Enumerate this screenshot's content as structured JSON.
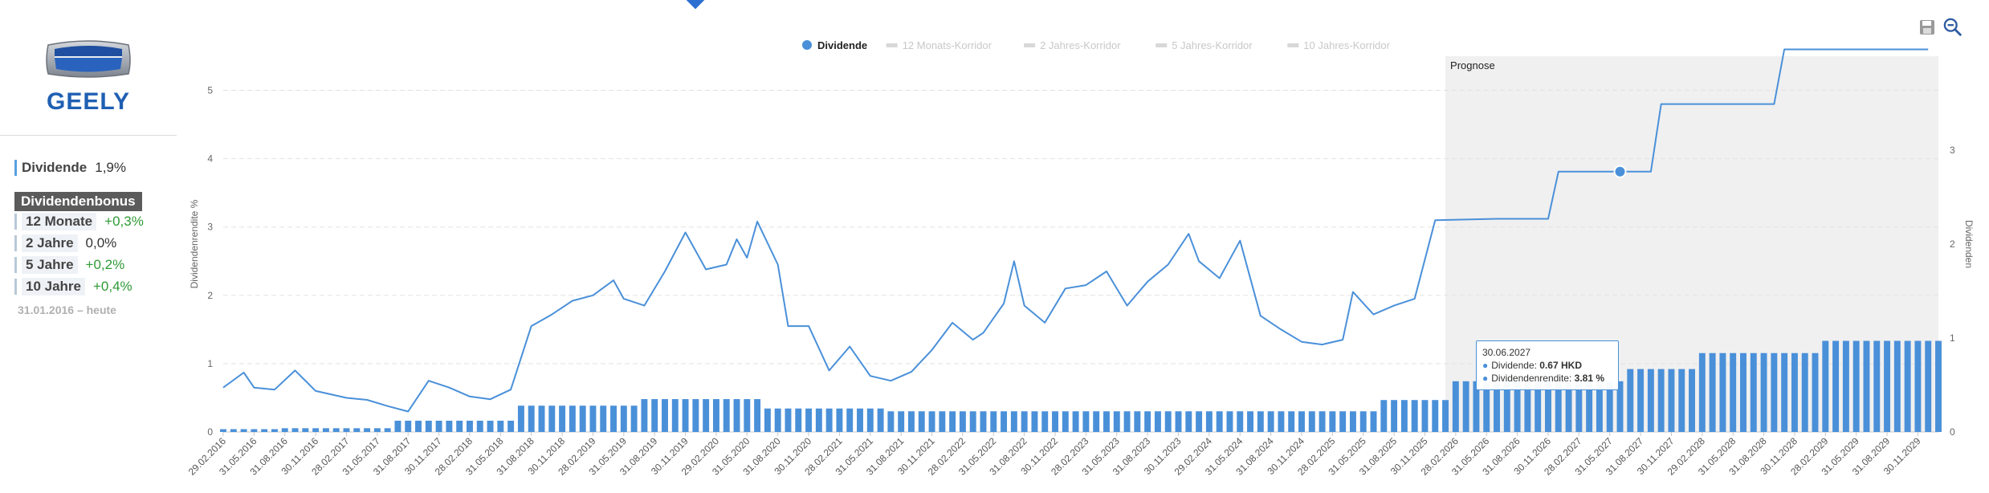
{
  "company": {
    "logo_text": "GEELY"
  },
  "metrics": {
    "dividend": {
      "label": "Dividende",
      "value": "1,9%"
    },
    "bonus_header": "Dividendenbonus",
    "bonus": [
      {
        "label": "12 Monate",
        "value": "+0,3%"
      },
      {
        "label": "2 Jahre",
        "value": "0,0%"
      },
      {
        "label": "5 Jahre",
        "value": "+0,2%"
      },
      {
        "label": "10 Jahre",
        "value": "+0,4%"
      }
    ],
    "range": "31.01.2016 – heute"
  },
  "tooltip": {
    "date": "30.06.2027",
    "dividend_label": "Dividende:",
    "dividend_value": "0.67 HKD",
    "yield_label": "Dividendenrendite:",
    "yield_value": "3.81 %"
  },
  "colors": {
    "line": "#4a90d9",
    "bars": "#4a90d9",
    "forecast_bg": "#f0f0f0"
  },
  "toolbar": {
    "icons": [
      "save-icon",
      "zoom-out-icon"
    ]
  },
  "chart_data": {
    "type": "bar+line",
    "legend": [
      {
        "name": "Dividende",
        "active": true
      },
      {
        "name": "12 Monats-Korridor",
        "active": false
      },
      {
        "name": "2 Jahres-Korridor",
        "active": false
      },
      {
        "name": "5 Jahres-Korridor",
        "active": false
      },
      {
        "name": "10 Jahres-Korridor",
        "active": false
      }
    ],
    "forecast_label": "Prognose",
    "forecast_start": "2026-01",
    "ylabel_left": "Dividendenrendite %",
    "ylabel_right": "Dividenden",
    "y_left_range": [
      0,
      5.5
    ],
    "y_left_ticks": [
      0,
      1,
      2,
      3,
      4,
      5
    ],
    "y_right_range": [
      0,
      4
    ],
    "y_right_ticks": [
      0,
      1,
      2,
      3
    ],
    "x_range": [
      "2016-02",
      "2030-01"
    ],
    "x_tick_labels": [
      "29.02.2016",
      "31.05.2016",
      "31.08.2016",
      "30.11.2016",
      "28.02.2017",
      "31.05.2017",
      "31.08.2017",
      "30.11.2017",
      "28.02.2018",
      "31.05.2018",
      "31.08.2018",
      "30.11.2018",
      "28.02.2019",
      "31.05.2019",
      "31.08.2019",
      "30.11.2019",
      "29.02.2020",
      "31.05.2020",
      "31.08.2020",
      "30.11.2020",
      "28.02.2021",
      "31.05.2021",
      "31.08.2021",
      "30.11.2021",
      "28.02.2022",
      "31.05.2022",
      "31.08.2022",
      "30.11.2022",
      "28.02.2023",
      "31.05.2023",
      "31.08.2023",
      "30.11.2023",
      "29.02.2024",
      "31.05.2024",
      "31.08.2024",
      "30.11.2024",
      "28.02.2025",
      "31.05.2025",
      "31.08.2025",
      "30.11.2025",
      "28.02.2026",
      "31.05.2026",
      "31.08.2026",
      "30.11.2026",
      "28.02.2027",
      "31.05.2027",
      "31.08.2027",
      "30.11.2027",
      "29.02.2028",
      "31.05.2028",
      "31.08.2028",
      "30.11.2028",
      "28.02.2029",
      "31.05.2029",
      "31.08.2029",
      "30.11.2029"
    ],
    "dividend_bars": [
      {
        "from": "2016-02",
        "to": "2016-07",
        "value": 0.03
      },
      {
        "from": "2016-08",
        "to": "2017-06",
        "value": 0.04
      },
      {
        "from": "2017-07",
        "to": "2018-06",
        "value": 0.12
      },
      {
        "from": "2018-07",
        "to": "2019-06",
        "value": 0.28
      },
      {
        "from": "2019-07",
        "to": "2020-06",
        "value": 0.35
      },
      {
        "from": "2020-07",
        "to": "2021-06",
        "value": 0.25
      },
      {
        "from": "2021-07",
        "to": "2025-06",
        "value": 0.22
      },
      {
        "from": "2025-07",
        "to": "2026-01",
        "value": 0.34
      },
      {
        "from": "2026-02",
        "to": "2027-06",
        "value": 0.54
      },
      {
        "from": "2027-07",
        "to": "2028-01",
        "value": 0.67
      },
      {
        "from": "2028-02",
        "to": "2029-01",
        "value": 0.84
      },
      {
        "from": "2029-02",
        "to": "2030-01",
        "value": 0.97
      }
    ],
    "yield_line": [
      [
        "2016-02",
        0.65
      ],
      [
        "2016-04",
        0.87
      ],
      [
        "2016-05",
        0.65
      ],
      [
        "2016-07",
        0.62
      ],
      [
        "2016-09",
        0.9
      ],
      [
        "2016-11",
        0.6
      ],
      [
        "2017-02",
        0.5
      ],
      [
        "2017-04",
        0.47
      ],
      [
        "2017-06",
        0.38
      ],
      [
        "2017-08",
        0.3
      ],
      [
        "2017-10",
        0.75
      ],
      [
        "2017-12",
        0.65
      ],
      [
        "2018-02",
        0.52
      ],
      [
        "2018-04",
        0.48
      ],
      [
        "2018-06",
        0.62
      ],
      [
        "2018-08",
        1.55
      ],
      [
        "2018-10",
        1.72
      ],
      [
        "2018-12",
        1.92
      ],
      [
        "2019-02",
        2.0
      ],
      [
        "2019-04",
        2.22
      ],
      [
        "2019-05",
        1.95
      ],
      [
        "2019-07",
        1.85
      ],
      [
        "2019-09",
        2.35
      ],
      [
        "2019-11",
        2.92
      ],
      [
        "2020-01",
        2.38
      ],
      [
        "2020-03",
        2.45
      ],
      [
        "2020-04",
        2.82
      ],
      [
        "2020-05",
        2.55
      ],
      [
        "2020-06",
        3.08
      ],
      [
        "2020-08",
        2.45
      ],
      [
        "2020-09",
        1.55
      ],
      [
        "2020-11",
        1.55
      ],
      [
        "2021-01",
        0.9
      ],
      [
        "2021-03",
        1.25
      ],
      [
        "2021-05",
        0.82
      ],
      [
        "2021-07",
        0.75
      ],
      [
        "2021-09",
        0.88
      ],
      [
        "2021-11",
        1.2
      ],
      [
        "2022-01",
        1.6
      ],
      [
        "2022-03",
        1.35
      ],
      [
        "2022-04",
        1.45
      ],
      [
        "2022-06",
        1.88
      ],
      [
        "2022-07",
        2.5
      ],
      [
        "2022-08",
        1.85
      ],
      [
        "2022-10",
        1.6
      ],
      [
        "2022-12",
        2.1
      ],
      [
        "2023-02",
        2.15
      ],
      [
        "2023-04",
        2.35
      ],
      [
        "2023-06",
        1.85
      ],
      [
        "2023-08",
        2.2
      ],
      [
        "2023-10",
        2.45
      ],
      [
        "2023-12",
        2.9
      ],
      [
        "2024-01",
        2.5
      ],
      [
        "2024-03",
        2.25
      ],
      [
        "2024-05",
        2.8
      ],
      [
        "2024-07",
        1.7
      ],
      [
        "2024-09",
        1.5
      ],
      [
        "2024-11",
        1.32
      ],
      [
        "2025-01",
        1.28
      ],
      [
        "2025-03",
        1.35
      ],
      [
        "2025-04",
        2.05
      ],
      [
        "2025-06",
        1.72
      ],
      [
        "2025-08",
        1.85
      ],
      [
        "2025-10",
        1.95
      ],
      [
        "2025-12",
        3.1
      ],
      [
        "2026-06",
        3.12
      ],
      [
        "2026-11",
        3.12
      ],
      [
        "2026-12",
        3.81
      ],
      [
        "2027-09",
        3.81
      ],
      [
        "2027-10",
        4.8
      ],
      [
        "2028-09",
        4.8
      ],
      [
        "2028-10",
        5.6
      ],
      [
        "2029-12",
        5.6
      ]
    ],
    "highlight_point": {
      "x": "2027-06",
      "y": 3.81
    }
  }
}
